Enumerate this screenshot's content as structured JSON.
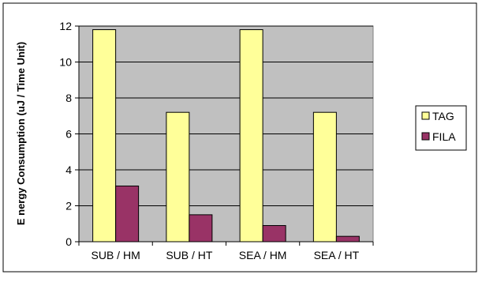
{
  "chart_data": {
    "type": "bar",
    "title": "",
    "xlabel": "",
    "ylabel": "E nergy Consumption (uJ / Time Unit)",
    "categories": [
      "SUB / HM",
      "SUB / HT",
      "SEA / HM",
      "SEA / HT"
    ],
    "series": [
      {
        "name": "TAG",
        "values": [
          11.8,
          7.2,
          11.8,
          7.2
        ],
        "color": "#ffff99"
      },
      {
        "name": "FILA",
        "values": [
          3.1,
          1.5,
          0.9,
          0.3
        ],
        "color": "#993366"
      }
    ],
    "ylim": [
      0,
      12
    ],
    "yticks": [
      "0",
      "2",
      "4",
      "6",
      "8",
      "10",
      "12"
    ],
    "grid": true,
    "legend": "right",
    "plot_background": "#c0c0c0",
    "bar_outline": "#000000"
  }
}
